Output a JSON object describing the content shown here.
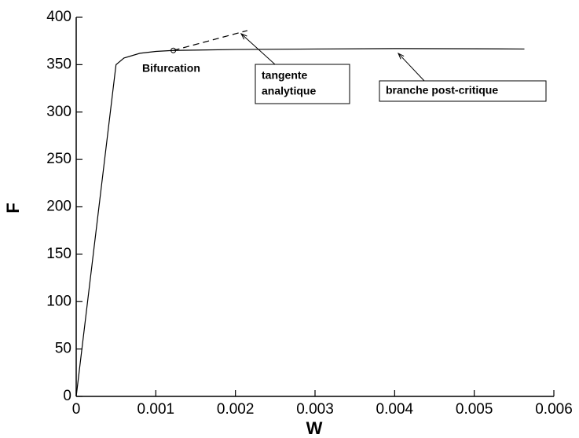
{
  "chart_data": {
    "type": "line",
    "x_label": "W",
    "y_label": "F",
    "xlim": [
      0,
      0.006
    ],
    "ylim": [
      0,
      400
    ],
    "xticks": [
      0,
      0.001,
      0.002,
      0.003,
      0.004,
      0.005,
      0.006
    ],
    "yticks": [
      0,
      50,
      100,
      150,
      200,
      250,
      300,
      350,
      400
    ],
    "series": [
      {
        "color": "#000000",
        "dash": false,
        "x": [
          0,
          0.0005,
          0.0006,
          0.0008,
          0.001,
          0.00122,
          0.002,
          0.003,
          0.004,
          0.005,
          0.00563
        ],
        "values": [
          0,
          350,
          357,
          362,
          364,
          365,
          366,
          366.5,
          367,
          366.8,
          366.5
        ]
      },
      {
        "color": "#000000",
        "dash": true,
        "x": [
          0.00122,
          0.00215
        ],
        "values": [
          365,
          386
        ]
      }
    ],
    "point": {
      "x": 0.00122,
      "y": 365
    },
    "annotations": [
      {
        "lines": [
          "Bifurcation"
        ]
      },
      {
        "lines": [
          "tangente",
          "analytique"
        ]
      },
      {
        "lines": [
          "branche post-critique"
        ]
      }
    ]
  }
}
